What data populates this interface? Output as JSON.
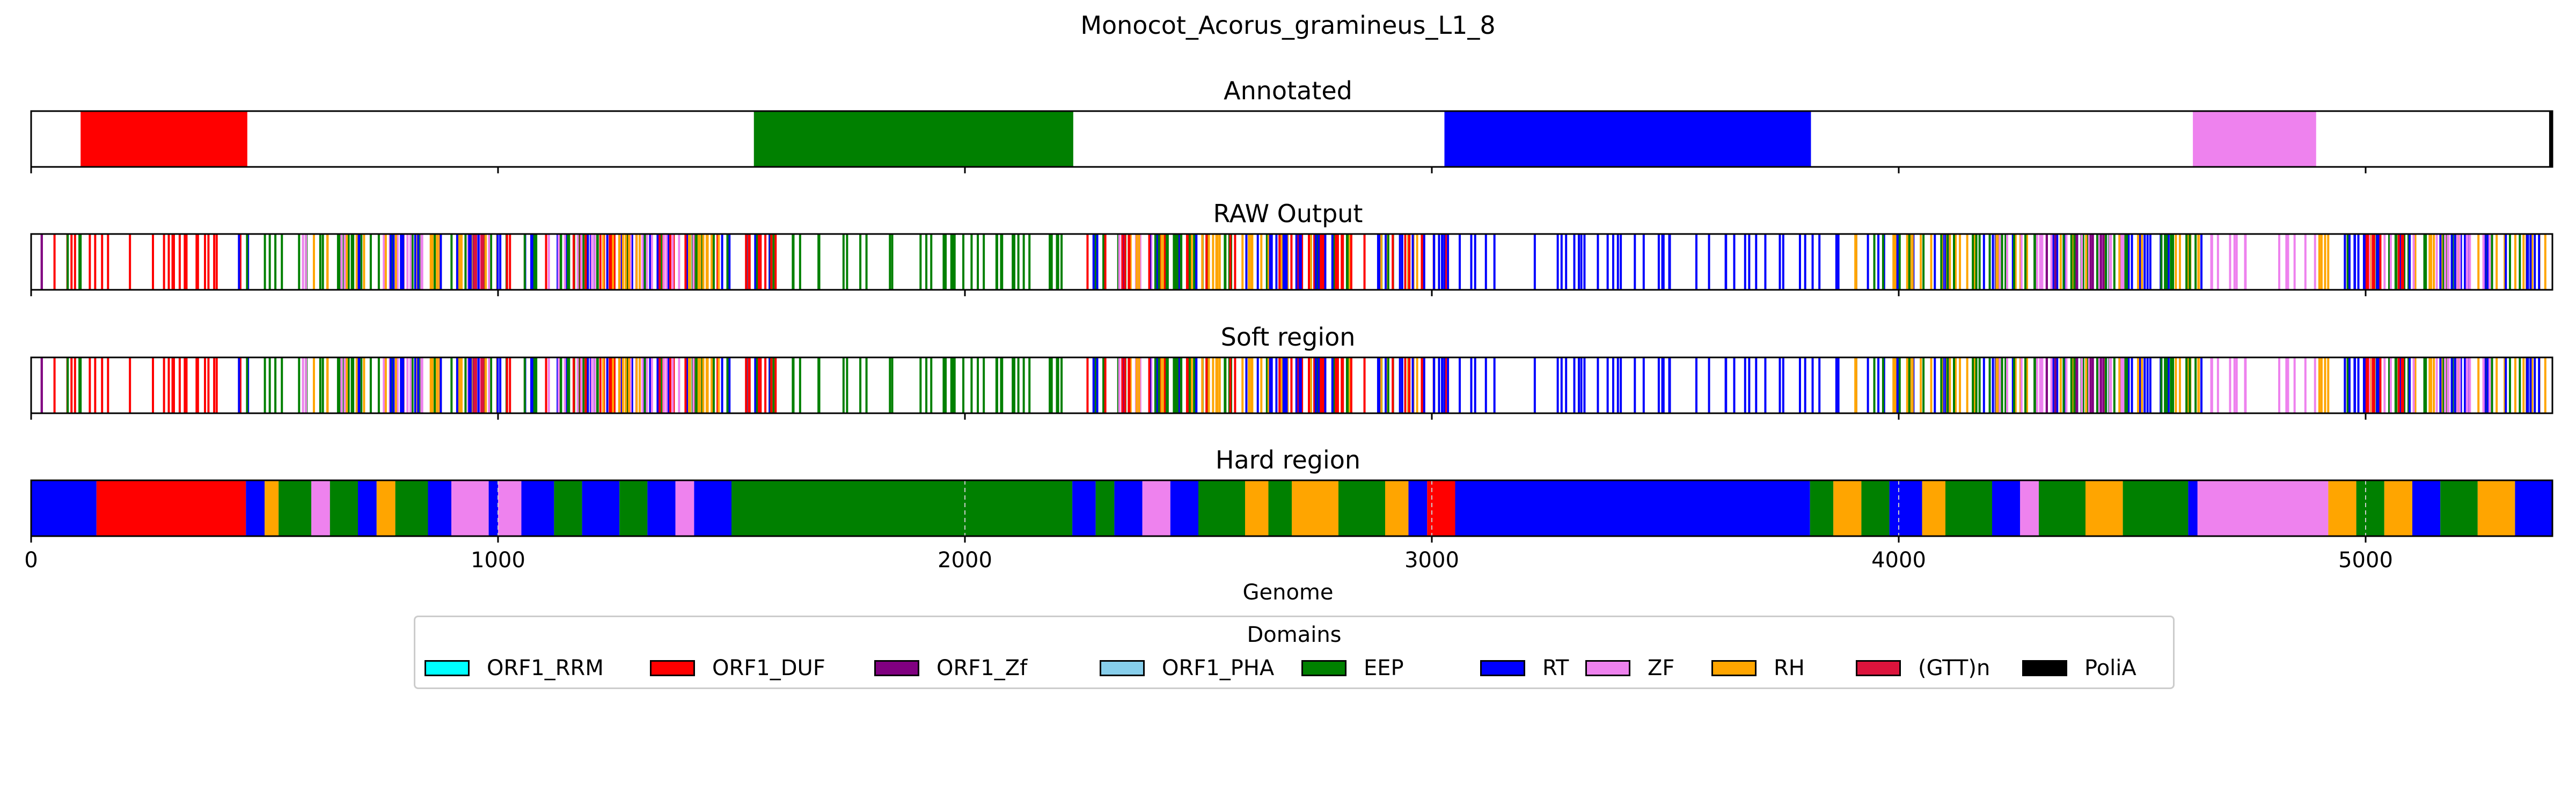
{
  "chart_data": {
    "type": "bar",
    "title": "Monocot_Acorus_gramineus_L1_8",
    "xlabel": "Genome",
    "xlim": [
      0,
      5400
    ],
    "xticks": [
      0,
      1000,
      2000,
      3000,
      4000,
      5000
    ],
    "xtick_labels": [
      "0",
      "1000",
      "2000",
      "3000",
      "4000",
      "5000"
    ],
    "panels": [
      {
        "title": "Annotated",
        "style": "blocks",
        "segments": [
          {
            "domain": "ORF1_DUF",
            "start": 106,
            "end": 463
          },
          {
            "domain": "EEP",
            "start": 1548,
            "end": 2232
          },
          {
            "domain": "RT",
            "start": 3027,
            "end": 3812
          },
          {
            "domain": "ZF",
            "start": 4630,
            "end": 4894
          },
          {
            "domain": "PoliA",
            "start": 5393,
            "end": 5400
          }
        ]
      },
      {
        "title": "RAW Output",
        "style": "lines",
        "segments": [
          {
            "domain": "ORF1_DUF",
            "start": 0,
            "end": 450
          },
          {
            "domain": "EEP",
            "start": 60,
            "end": 110
          },
          {
            "domain": "ORF1_Zf",
            "start": 10,
            "end": 40
          },
          {
            "domain": "RT",
            "start": 440,
            "end": 470
          },
          {
            "domain": "EEP",
            "start": 450,
            "end": 1000
          },
          {
            "domain": "ZF",
            "start": 580,
            "end": 1000
          },
          {
            "domain": "RH",
            "start": 600,
            "end": 1000
          },
          {
            "domain": "RT",
            "start": 700,
            "end": 1000
          },
          {
            "domain": "(GTT)n",
            "start": 900,
            "end": 1000
          },
          {
            "domain": "RT",
            "start": 1000,
            "end": 1600
          },
          {
            "domain": "EEP",
            "start": 1000,
            "end": 1600
          },
          {
            "domain": "ORF1_DUF",
            "start": 1000,
            "end": 1600
          },
          {
            "domain": "ZF",
            "start": 1100,
            "end": 1450
          },
          {
            "domain": "RH",
            "start": 1200,
            "end": 1500
          },
          {
            "domain": "EEP",
            "start": 1600,
            "end": 2350
          },
          {
            "domain": "ZF",
            "start": 2330,
            "end": 2470
          },
          {
            "domain": "RT",
            "start": 2250,
            "end": 2500
          },
          {
            "domain": "RH",
            "start": 2350,
            "end": 2500
          },
          {
            "domain": "ORF1_DUF",
            "start": 2250,
            "end": 2480
          },
          {
            "domain": "EEP",
            "start": 2400,
            "end": 3000
          },
          {
            "domain": "RH",
            "start": 2500,
            "end": 3000
          },
          {
            "domain": "ORF1_DUF",
            "start": 2500,
            "end": 3050
          },
          {
            "domain": "RT",
            "start": 2600,
            "end": 3000
          },
          {
            "domain": "RT",
            "start": 3000,
            "end": 3850
          },
          {
            "domain": "RT",
            "start": 3850,
            "end": 4650
          },
          {
            "domain": "RH",
            "start": 3900,
            "end": 4650
          },
          {
            "domain": "EEP",
            "start": 3900,
            "end": 4650
          },
          {
            "domain": "ZF",
            "start": 4200,
            "end": 4500
          },
          {
            "domain": "ORF1_Zf",
            "start": 4300,
            "end": 4450
          },
          {
            "domain": "ZF",
            "start": 4650,
            "end": 4900
          },
          {
            "domain": "RH",
            "start": 4900,
            "end": 5400
          },
          {
            "domain": "EEP",
            "start": 4950,
            "end": 5400
          },
          {
            "domain": "RT",
            "start": 4950,
            "end": 5400
          },
          {
            "domain": "ZF",
            "start": 5000,
            "end": 5300
          },
          {
            "domain": "ORF1_DUF",
            "start": 5000,
            "end": 5150
          }
        ]
      },
      {
        "title": "Soft region",
        "style": "lines",
        "segments": [
          {
            "domain": "ORF1_DUF",
            "start": 0,
            "end": 450
          },
          {
            "domain": "EEP",
            "start": 60,
            "end": 110
          },
          {
            "domain": "ORF1_Zf",
            "start": 10,
            "end": 40
          },
          {
            "domain": "RT",
            "start": 440,
            "end": 470
          },
          {
            "domain": "EEP",
            "start": 450,
            "end": 1000
          },
          {
            "domain": "ZF",
            "start": 580,
            "end": 1000
          },
          {
            "domain": "RH",
            "start": 600,
            "end": 1000
          },
          {
            "domain": "RT",
            "start": 700,
            "end": 1000
          },
          {
            "domain": "(GTT)n",
            "start": 900,
            "end": 1000
          },
          {
            "domain": "RT",
            "start": 1000,
            "end": 1600
          },
          {
            "domain": "EEP",
            "start": 1000,
            "end": 1600
          },
          {
            "domain": "ORF1_DUF",
            "start": 1000,
            "end": 1600
          },
          {
            "domain": "ZF",
            "start": 1100,
            "end": 1450
          },
          {
            "domain": "RH",
            "start": 1200,
            "end": 1500
          },
          {
            "domain": "EEP",
            "start": 1600,
            "end": 2350
          },
          {
            "domain": "ZF",
            "start": 2330,
            "end": 2470
          },
          {
            "domain": "RT",
            "start": 2250,
            "end": 2500
          },
          {
            "domain": "RH",
            "start": 2350,
            "end": 2500
          },
          {
            "domain": "ORF1_DUF",
            "start": 2250,
            "end": 2480
          },
          {
            "domain": "EEP",
            "start": 2400,
            "end": 3000
          },
          {
            "domain": "RH",
            "start": 2500,
            "end": 3000
          },
          {
            "domain": "ORF1_DUF",
            "start": 2500,
            "end": 3050
          },
          {
            "domain": "RT",
            "start": 2600,
            "end": 3000
          },
          {
            "domain": "RT",
            "start": 3000,
            "end": 3850
          },
          {
            "domain": "RT",
            "start": 3850,
            "end": 4650
          },
          {
            "domain": "RH",
            "start": 3900,
            "end": 4650
          },
          {
            "domain": "EEP",
            "start": 3900,
            "end": 4650
          },
          {
            "domain": "ZF",
            "start": 4200,
            "end": 4500
          },
          {
            "domain": "ORF1_Zf",
            "start": 4300,
            "end": 4450
          },
          {
            "domain": "ZF",
            "start": 4650,
            "end": 4900
          },
          {
            "domain": "RH",
            "start": 4900,
            "end": 5400
          },
          {
            "domain": "EEP",
            "start": 4950,
            "end": 5400
          },
          {
            "domain": "RT",
            "start": 4950,
            "end": 5400
          },
          {
            "domain": "ZF",
            "start": 5000,
            "end": 5300
          },
          {
            "domain": "ORF1_DUF",
            "start": 5000,
            "end": 5150
          }
        ]
      },
      {
        "title": "Hard region",
        "style": "blocks",
        "segments": [
          {
            "domain": "RT",
            "start": 0,
            "end": 140
          },
          {
            "domain": "ORF1_DUF",
            "start": 140,
            "end": 460
          },
          {
            "domain": "RT",
            "start": 460,
            "end": 500
          },
          {
            "domain": "RH",
            "start": 500,
            "end": 530
          },
          {
            "domain": "EEP",
            "start": 530,
            "end": 600
          },
          {
            "domain": "ZF",
            "start": 600,
            "end": 640
          },
          {
            "domain": "EEP",
            "start": 640,
            "end": 700
          },
          {
            "domain": "RT",
            "start": 700,
            "end": 740
          },
          {
            "domain": "RH",
            "start": 740,
            "end": 780
          },
          {
            "domain": "EEP",
            "start": 780,
            "end": 850
          },
          {
            "domain": "RT",
            "start": 850,
            "end": 900
          },
          {
            "domain": "ZF",
            "start": 900,
            "end": 980
          },
          {
            "domain": "RT",
            "start": 980,
            "end": 1000
          },
          {
            "domain": "ZF",
            "start": 1000,
            "end": 1050
          },
          {
            "domain": "RT",
            "start": 1050,
            "end": 1120
          },
          {
            "domain": "EEP",
            "start": 1120,
            "end": 1180
          },
          {
            "domain": "RT",
            "start": 1180,
            "end": 1260
          },
          {
            "domain": "EEP",
            "start": 1260,
            "end": 1320
          },
          {
            "domain": "RT",
            "start": 1320,
            "end": 1380
          },
          {
            "domain": "ZF",
            "start": 1380,
            "end": 1420
          },
          {
            "domain": "RT",
            "start": 1420,
            "end": 1500
          },
          {
            "domain": "EEP",
            "start": 1500,
            "end": 2230
          },
          {
            "domain": "RT",
            "start": 2230,
            "end": 2280
          },
          {
            "domain": "EEP",
            "start": 2280,
            "end": 2320
          },
          {
            "domain": "RT",
            "start": 2320,
            "end": 2380
          },
          {
            "domain": "ZF",
            "start": 2380,
            "end": 2440
          },
          {
            "domain": "RT",
            "start": 2440,
            "end": 2500
          },
          {
            "domain": "EEP",
            "start": 2500,
            "end": 2600
          },
          {
            "domain": "RH",
            "start": 2600,
            "end": 2650
          },
          {
            "domain": "EEP",
            "start": 2650,
            "end": 2700
          },
          {
            "domain": "RH",
            "start": 2700,
            "end": 2800
          },
          {
            "domain": "EEP",
            "start": 2800,
            "end": 2900
          },
          {
            "domain": "RH",
            "start": 2900,
            "end": 2950
          },
          {
            "domain": "RT",
            "start": 2950,
            "end": 2990
          },
          {
            "domain": "ORF1_DUF",
            "start": 2990,
            "end": 3050
          },
          {
            "domain": "RT",
            "start": 3050,
            "end": 3810
          },
          {
            "domain": "EEP",
            "start": 3810,
            "end": 3860
          },
          {
            "domain": "RH",
            "start": 3860,
            "end": 3920
          },
          {
            "domain": "EEP",
            "start": 3920,
            "end": 3980
          },
          {
            "domain": "RT",
            "start": 3980,
            "end": 4050
          },
          {
            "domain": "RH",
            "start": 4050,
            "end": 4100
          },
          {
            "domain": "EEP",
            "start": 4100,
            "end": 4200
          },
          {
            "domain": "RT",
            "start": 4200,
            "end": 4260
          },
          {
            "domain": "ZF",
            "start": 4260,
            "end": 4300
          },
          {
            "domain": "EEP",
            "start": 4300,
            "end": 4400
          },
          {
            "domain": "RH",
            "start": 4400,
            "end": 4480
          },
          {
            "domain": "EEP",
            "start": 4480,
            "end": 4620
          },
          {
            "domain": "RT",
            "start": 4620,
            "end": 4640
          },
          {
            "domain": "ZF",
            "start": 4640,
            "end": 4920
          },
          {
            "domain": "RH",
            "start": 4920,
            "end": 4980
          },
          {
            "domain": "EEP",
            "start": 4980,
            "end": 5040
          },
          {
            "domain": "RH",
            "start": 5040,
            "end": 5100
          },
          {
            "domain": "RT",
            "start": 5100,
            "end": 5160
          },
          {
            "domain": "EEP",
            "start": 5160,
            "end": 5240
          },
          {
            "domain": "RH",
            "start": 5240,
            "end": 5320
          },
          {
            "domain": "RT",
            "start": 5320,
            "end": 5400
          }
        ]
      }
    ],
    "legend": {
      "title": "Domains",
      "placement": "bottom-center",
      "entries": [
        {
          "name": "ORF1_RRM",
          "color": "#00ffff"
        },
        {
          "name": "ORF1_DUF",
          "color": "#ff0000"
        },
        {
          "name": "ORF1_Zf",
          "color": "#800080"
        },
        {
          "name": "ORF1_PHA",
          "color": "#87ceeb"
        },
        {
          "name": "EEP",
          "color": "#008000"
        },
        {
          "name": "RT",
          "color": "#0000ff"
        },
        {
          "name": "ZF",
          "color": "#ee82ee"
        },
        {
          "name": "RH",
          "color": "#ffa500"
        },
        {
          "name": "(GTT)n",
          "color": "#dc143c"
        },
        {
          "name": "PoliA",
          "color": "#000000"
        }
      ]
    }
  }
}
